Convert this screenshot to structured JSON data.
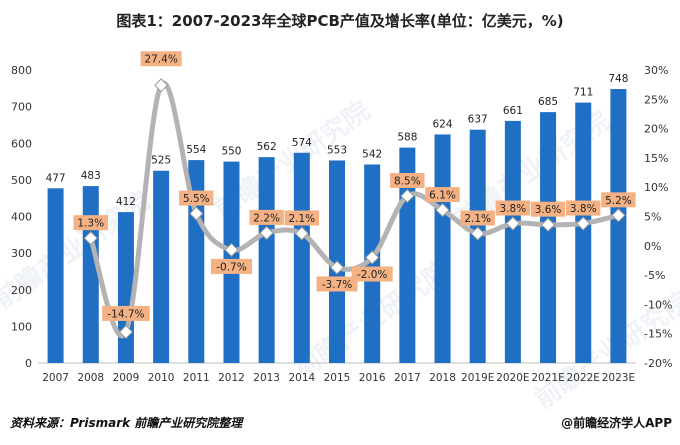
{
  "title": "图表1：2007-2023年全球PCB产值及增长率(单位：亿美元，%)",
  "source": "资料来源：Prismark 前瞻产业研究院整理",
  "brand": "@前瞻经济学人APP",
  "watermark": "前瞻产业研究院",
  "colors": {
    "bar": "#1f6fc5",
    "line": "#b3b3b3",
    "label_bg": "#f4b183",
    "axis": "#333333",
    "grid": "#e5e5e5"
  },
  "chart_data": {
    "type": "bar",
    "categories": [
      "2007",
      "2008",
      "2009",
      "2010",
      "2011",
      "2012",
      "2013",
      "2014",
      "2015",
      "2016",
      "2017",
      "2018",
      "2019E",
      "2020E",
      "2021E",
      "2022E",
      "2023E"
    ],
    "series": [
      {
        "type": "bar",
        "axis": "left",
        "values": [
          477,
          483,
          412,
          525,
          554,
          550,
          562,
          574,
          553,
          542,
          588,
          624,
          637,
          661,
          685,
          711,
          748
        ]
      },
      {
        "type": "line",
        "axis": "right",
        "values": [
          null,
          1.3,
          -14.7,
          27.4,
          5.5,
          -0.7,
          2.2,
          2.1,
          -3.7,
          -2.0,
          8.5,
          6.1,
          2.1,
          3.8,
          3.6,
          3.8,
          5.2
        ]
      }
    ],
    "bar_labels": [
      "477",
      "483",
      "412",
      "525",
      "554",
      "550",
      "562",
      "574",
      "553",
      "542",
      "588",
      "624",
      "637",
      "661",
      "685",
      "711",
      "748"
    ],
    "line_labels": [
      "",
      "1.3%",
      "-14.7%",
      "27.4%",
      "5.5%",
      "-0.7%",
      "2.2%",
      "2.1%",
      "-3.7%",
      "-2.0%",
      "8.5%",
      "6.1%",
      "2.1%",
      "3.8%",
      "3.6%",
      "3.8%",
      "5.2%"
    ],
    "y_left": {
      "min": 0,
      "max": 800,
      "ticks": [
        "0",
        "100",
        "200",
        "300",
        "400",
        "500",
        "600",
        "700",
        "800"
      ]
    },
    "y_right": {
      "min": -20,
      "max": 30,
      "ticks": [
        "-20%",
        "-15%",
        "-10%",
        "-5%",
        "0%",
        "5%",
        "10%",
        "15%",
        "20%",
        "25%",
        "30%"
      ]
    },
    "grid": false,
    "legend": "none"
  }
}
